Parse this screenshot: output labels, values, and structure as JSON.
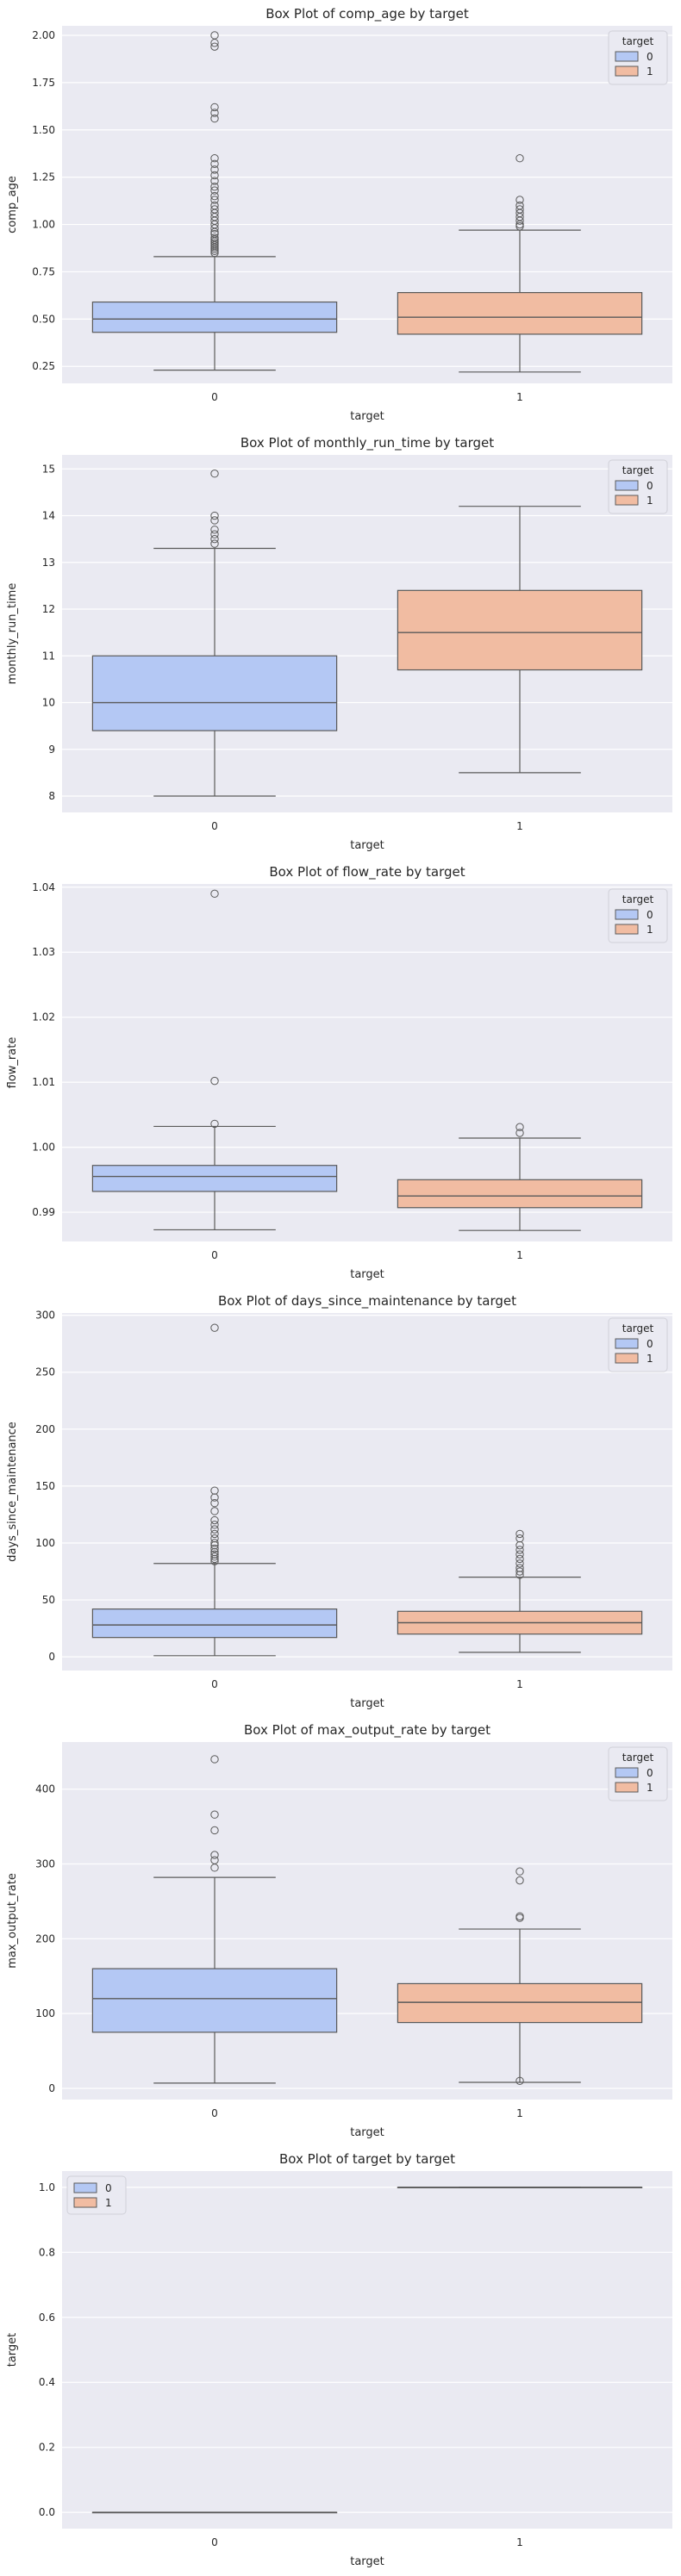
{
  "legend_title": "target",
  "legend_labels": [
    "0",
    "1"
  ],
  "colors": {
    "box0": "#b4c8f4",
    "box1": "#f1bca2",
    "plot_bg": "#eaeaf2",
    "grid": "#ffffff",
    "line": "#5a5a5a"
  },
  "chart_data": [
    {
      "type": "box",
      "title": "Box Plot of comp_age by target",
      "xlabel": "target",
      "ylabel": "comp_age",
      "categories": [
        "0",
        "1"
      ],
      "ylim": [
        0.16,
        2.05
      ],
      "yticks": [
        0.25,
        0.5,
        0.75,
        1.0,
        1.25,
        1.5,
        1.75,
        2.0
      ],
      "ytick_labels": [
        "0.25",
        "0.50",
        "0.75",
        "1.00",
        "1.25",
        "1.50",
        "1.75",
        "2.00"
      ],
      "legend_position": "top-right",
      "boxes": [
        {
          "whislo": 0.23,
          "q1": 0.43,
          "med": 0.5,
          "q3": 0.59,
          "whishi": 0.83,
          "fliers": [
            0.85,
            0.86,
            0.87,
            0.88,
            0.89,
            0.9,
            0.91,
            0.92,
            0.93,
            0.95,
            0.96,
            0.98,
            1.0,
            1.02,
            1.04,
            1.06,
            1.08,
            1.1,
            1.13,
            1.15,
            1.18,
            1.2,
            1.23,
            1.26,
            1.29,
            1.32,
            1.35,
            1.56,
            1.59,
            1.62,
            1.94,
            1.96,
            2.0
          ]
        },
        {
          "whislo": 0.22,
          "q1": 0.42,
          "med": 0.51,
          "q3": 0.64,
          "whishi": 0.97,
          "fliers": [
            0.99,
            1.0,
            1.02,
            1.04,
            1.06,
            1.08,
            1.1,
            1.13,
            1.35
          ]
        }
      ]
    },
    {
      "type": "box",
      "title": "Box Plot of monthly_run_time by target",
      "xlabel": "target",
      "ylabel": "monthly_run_time",
      "categories": [
        "0",
        "1"
      ],
      "ylim": [
        7.65,
        15.3
      ],
      "yticks": [
        8,
        9,
        10,
        11,
        12,
        13,
        14,
        15
      ],
      "ytick_labels": [
        "8",
        "9",
        "10",
        "11",
        "12",
        "13",
        "14",
        "15"
      ],
      "legend_position": "top-right",
      "boxes": [
        {
          "whislo": 8.0,
          "q1": 9.4,
          "med": 10.0,
          "q3": 11.0,
          "whishi": 13.3,
          "fliers": [
            13.4,
            13.5,
            13.6,
            13.7,
            13.9,
            14.0,
            14.9
          ]
        },
        {
          "whislo": 8.5,
          "q1": 10.7,
          "med": 11.5,
          "q3": 12.4,
          "whishi": 14.2,
          "fliers": []
        }
      ]
    },
    {
      "type": "box",
      "title": "Box Plot of flow_rate by target",
      "xlabel": "target",
      "ylabel": "flow_rate",
      "categories": [
        "0",
        "1"
      ],
      "ylim": [
        0.9855,
        1.0405
      ],
      "yticks": [
        0.99,
        1.0,
        1.01,
        1.02,
        1.03,
        1.04
      ],
      "ytick_labels": [
        "0.99",
        "1.00",
        "1.01",
        "1.02",
        "1.03",
        "1.04"
      ],
      "legend_position": "top-right",
      "boxes": [
        {
          "whislo": 0.9873,
          "q1": 0.9932,
          "med": 0.9955,
          "q3": 0.9972,
          "whishi": 1.0032,
          "fliers": [
            1.0036,
            1.0102,
            1.039
          ]
        },
        {
          "whislo": 0.9872,
          "q1": 0.9907,
          "med": 0.9925,
          "q3": 0.995,
          "whishi": 1.0014,
          "fliers": [
            1.0022,
            1.0031
          ]
        }
      ]
    },
    {
      "type": "box",
      "title": "Box Plot of days_since_maintenance by target",
      "xlabel": "target",
      "ylabel": "days_since_maintenance",
      "categories": [
        "0",
        "1"
      ],
      "ylim": [
        -12,
        302
      ],
      "yticks": [
        0,
        50,
        100,
        150,
        200,
        250,
        300
      ],
      "ytick_labels": [
        "0",
        "50",
        "100",
        "150",
        "200",
        "250",
        "300"
      ],
      "legend_position": "top-right",
      "boxes": [
        {
          "whislo": 1,
          "q1": 17,
          "med": 28,
          "q3": 42,
          "whishi": 82,
          "fliers": [
            84,
            86,
            88,
            90,
            92,
            95,
            98,
            100,
            104,
            108,
            112,
            116,
            120,
            128,
            135,
            140,
            146,
            289
          ]
        },
        {
          "whislo": 4,
          "q1": 20,
          "med": 30,
          "q3": 40,
          "whishi": 70,
          "fliers": [
            72,
            75,
            78,
            82,
            86,
            90,
            94,
            98,
            104,
            108
          ]
        }
      ]
    },
    {
      "type": "box",
      "title": "Box Plot of max_output_rate by target",
      "xlabel": "target",
      "ylabel": "max_output_rate",
      "categories": [
        "0",
        "1"
      ],
      "ylim": [
        -15,
        463
      ],
      "yticks": [
        0,
        100,
        200,
        300,
        400
      ],
      "ytick_labels": [
        "0",
        "100",
        "200",
        "300",
        "400"
      ],
      "legend_position": "top-right",
      "boxes": [
        {
          "whislo": 7,
          "q1": 75,
          "med": 120,
          "q3": 160,
          "whishi": 282,
          "fliers": [
            295,
            305,
            312,
            345,
            366,
            440
          ]
        },
        {
          "whislo": 8,
          "q1": 88,
          "med": 115,
          "q3": 140,
          "whishi": 213,
          "fliers": [
            228,
            230,
            278,
            290,
            10
          ]
        }
      ]
    },
    {
      "type": "box",
      "title": "Box Plot of target by target",
      "xlabel": "target",
      "ylabel": "target",
      "categories": [
        "0",
        "1"
      ],
      "ylim": [
        -0.05,
        1.05
      ],
      "yticks": [
        0.0,
        0.2,
        0.4,
        0.6,
        0.8,
        1.0
      ],
      "ytick_labels": [
        "0.0",
        "0.2",
        "0.4",
        "0.6",
        "0.8",
        "1.0"
      ],
      "legend_position": "top-left",
      "boxes": [
        {
          "whislo": 0,
          "q1": 0,
          "med": 0,
          "q3": 0,
          "whishi": 0,
          "fliers": []
        },
        {
          "whislo": 1,
          "q1": 1,
          "med": 1,
          "q3": 1,
          "whishi": 1,
          "fliers": []
        }
      ]
    }
  ]
}
